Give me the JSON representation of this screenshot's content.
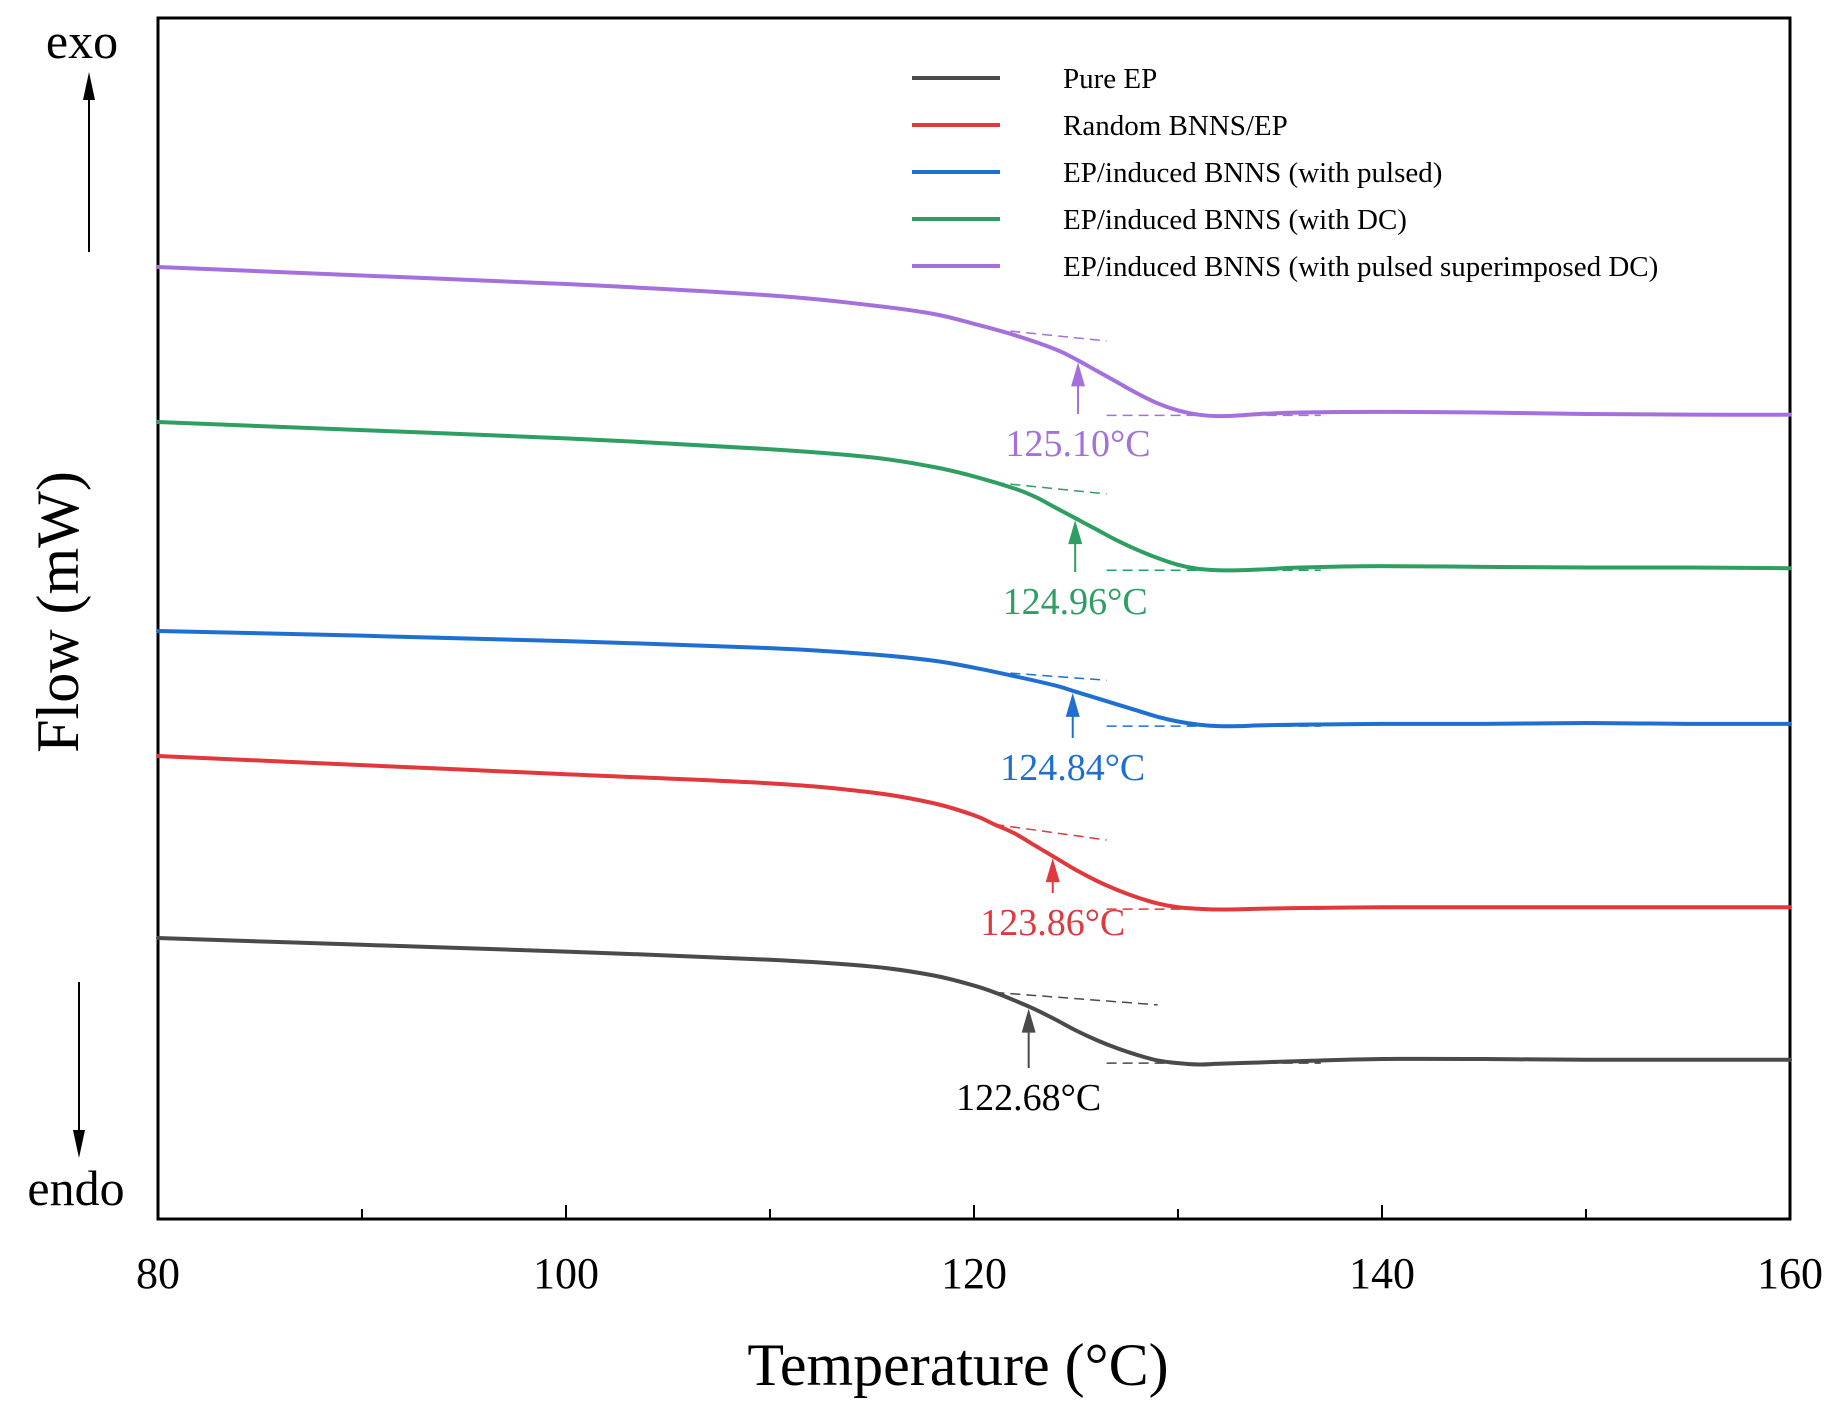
{
  "chart_data": {
    "type": "line",
    "xlabel": "Temperature (°C)",
    "ylabel": "Flow (mW)",
    "xlim": [
      80,
      160
    ],
    "x_ticks": [
      80,
      100,
      120,
      140,
      160
    ],
    "x_ticks_labeled": [
      "80",
      "100",
      "120",
      "140",
      "160"
    ],
    "y_ticks_shown": false,
    "grid": false,
    "legend_position": "top-right",
    "direction_labels": {
      "top": "exo",
      "bottom": "endo"
    },
    "y_offset_units": "arbitrary (curves vertically offset for clarity; no y-axis values printed)",
    "series": [
      {
        "name": "Pure EP",
        "color": "#4a4a4a",
        "x": [
          80,
          90,
          100,
          110,
          115,
          118,
          120,
          121,
          122,
          123,
          124,
          125,
          126,
          127,
          128,
          129,
          130,
          131,
          132,
          134,
          136,
          140,
          145,
          150,
          155,
          160
        ],
        "y": [
          0.0,
          -0.1,
          -0.2,
          -0.32,
          -0.42,
          -0.55,
          -0.7,
          -0.8,
          -0.92,
          -1.05,
          -1.2,
          -1.36,
          -1.5,
          -1.62,
          -1.72,
          -1.8,
          -1.84,
          -1.86,
          -1.85,
          -1.83,
          -1.81,
          -1.78,
          -1.78,
          -1.79,
          -1.79,
          -1.79
        ],
        "tg_label": "122.68°C",
        "tg": 122.68
      },
      {
        "name": "Random BNNS/EP",
        "color": "#e0383d",
        "x": [
          80,
          90,
          100,
          110,
          115,
          118,
          120,
          121,
          122,
          123,
          124,
          125,
          126,
          127,
          128,
          129,
          130,
          131,
          132,
          134,
          136,
          140,
          145,
          150,
          155,
          160
        ],
        "y": [
          0.0,
          -0.12,
          -0.24,
          -0.36,
          -0.48,
          -0.62,
          -0.78,
          -0.9,
          -1.02,
          -1.18,
          -1.34,
          -1.5,
          -1.64,
          -1.76,
          -1.86,
          -1.94,
          -1.99,
          -2.01,
          -2.02,
          -2.01,
          -2.0,
          -1.99,
          -1.99,
          -1.99,
          -1.99,
          -1.99
        ],
        "tg_label": "123.86°C",
        "tg": 123.86
      },
      {
        "name": "EP/induced BNNS (with pulsed)",
        "color": "#1f6fd1",
        "x": [
          80,
          90,
          100,
          110,
          115,
          118,
          120,
          122,
          124,
          125,
          126,
          127,
          128,
          129,
          130,
          131,
          132,
          133,
          134,
          136,
          140,
          145,
          150,
          155,
          160
        ],
        "y": [
          0.0,
          -0.06,
          -0.13,
          -0.22,
          -0.3,
          -0.38,
          -0.47,
          -0.58,
          -0.7,
          -0.78,
          -0.86,
          -0.94,
          -1.02,
          -1.1,
          -1.16,
          -1.2,
          -1.22,
          -1.22,
          -1.21,
          -1.2,
          -1.19,
          -1.19,
          -1.18,
          -1.19,
          -1.19
        ],
        "tg_label": "124.84°C",
        "tg": 124.84
      },
      {
        "name": "EP/induced BNNS (with DC)",
        "color": "#2f9e62",
        "x": [
          80,
          90,
          100,
          110,
          115,
          118,
          120,
          122,
          123,
          124,
          125,
          126,
          127,
          128,
          129,
          130,
          131,
          132,
          133,
          134,
          136,
          140,
          145,
          150,
          155,
          160
        ],
        "y": [
          0.0,
          -0.12,
          -0.24,
          -0.4,
          -0.52,
          -0.66,
          -0.8,
          -0.98,
          -1.1,
          -1.26,
          -1.42,
          -1.58,
          -1.74,
          -1.88,
          -2.0,
          -2.1,
          -2.16,
          -2.18,
          -2.18,
          -2.17,
          -2.14,
          -2.12,
          -2.13,
          -2.14,
          -2.14,
          -2.15
        ],
        "tg_label": "124.96°C",
        "tg": 124.96
      },
      {
        "name": "EP/induced BNNS (with pulsed superimposed DC)",
        "color": "#a570db",
        "x": [
          80,
          90,
          100,
          110,
          115,
          118,
          120,
          122,
          124,
          125,
          126,
          127,
          128,
          129,
          130,
          131,
          132,
          133,
          134,
          136,
          140,
          145,
          150,
          155,
          160
        ],
        "y": [
          0.0,
          -0.12,
          -0.24,
          -0.4,
          -0.54,
          -0.66,
          -0.8,
          -0.96,
          -1.16,
          -1.3,
          -1.46,
          -1.62,
          -1.78,
          -1.92,
          -2.02,
          -2.08,
          -2.1,
          -2.09,
          -2.07,
          -2.05,
          -2.04,
          -2.05,
          -2.07,
          -2.08,
          -2.08
        ],
        "tg_label": "125.10°C",
        "tg": 125.1
      }
    ]
  }
}
